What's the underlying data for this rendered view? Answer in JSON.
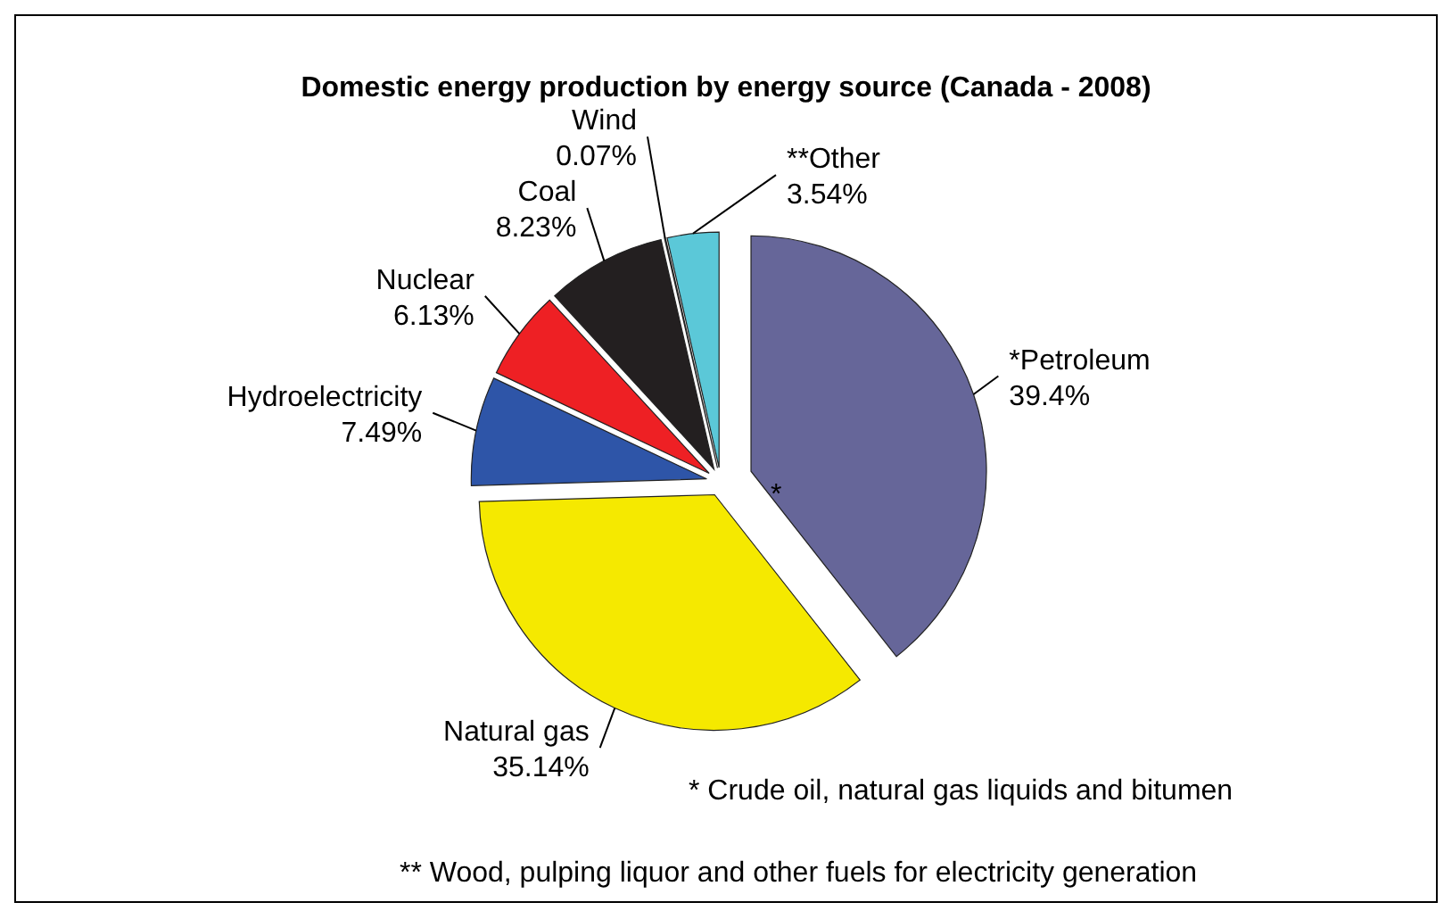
{
  "chart_data": {
    "type": "pie",
    "title": "Domestic energy production by energy source (Canada - 2008)",
    "categories": [
      "*Petroleum",
      "Natural gas",
      "Hydroelectricity",
      "Nuclear",
      "Coal",
      "Wind",
      "**Other"
    ],
    "values": [
      39.4,
      35.14,
      7.49,
      6.13,
      8.23,
      0.07,
      3.54
    ],
    "value_labels": [
      "39.4%",
      "35.14%",
      "7.49%",
      "6.13%",
      "8.23%",
      "0.07%",
      "3.54%"
    ],
    "colors": [
      "#666699",
      "#f5e900",
      "#2e55a8",
      "#ee2024",
      "#231f20",
      "#ffffff",
      "#5bc8d8"
    ],
    "annotations": [
      "*",
      "* Crude oil, natural gas liquids and bitumen",
      "** Wood, pulping liquor and other fuels for electricity generation"
    ]
  }
}
